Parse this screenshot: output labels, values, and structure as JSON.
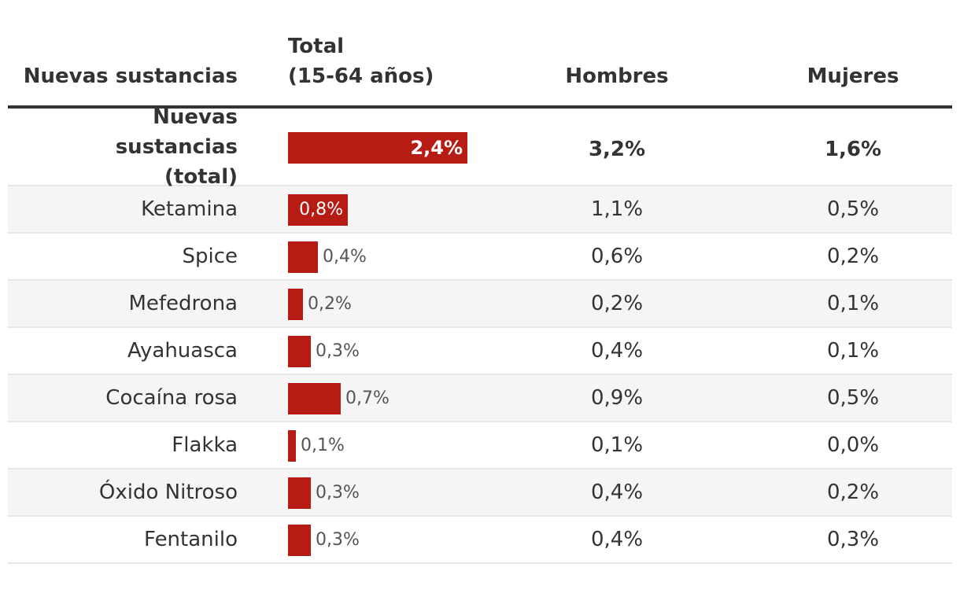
{
  "colors": {
    "bar": "#b71c14",
    "text": "#333333"
  },
  "header": {
    "name": "Nuevas sustancias",
    "total_line1": "Total",
    "total_line2": "(15-64 años)",
    "men": "Hombres",
    "women": "Mujeres"
  },
  "rows": [
    {
      "name": "Nuevas sustancias (total)",
      "total": 2.4,
      "total_label": "2,4%",
      "men": "3,2%",
      "women": "1,6%"
    },
    {
      "name": "Ketamina",
      "total": 0.8,
      "total_label": "0,8%",
      "men": "1,1%",
      "women": "0,5%"
    },
    {
      "name": "Spice",
      "total": 0.4,
      "total_label": "0,4%",
      "men": "0,6%",
      "women": "0,2%"
    },
    {
      "name": "Mefedrona",
      "total": 0.2,
      "total_label": "0,2%",
      "men": "0,2%",
      "women": "0,1%"
    },
    {
      "name": "Ayahuasca",
      "total": 0.3,
      "total_label": "0,3%",
      "men": "0,4%",
      "women": "0,1%"
    },
    {
      "name": "Cocaína rosa",
      "total": 0.7,
      "total_label": "0,7%",
      "men": "0,9%",
      "women": "0,5%"
    },
    {
      "name": "Flakka",
      "total": 0.1,
      "total_label": "0,1%",
      "men": "0,1%",
      "women": "0,0%"
    },
    {
      "name": "Óxido Nitroso",
      "total": 0.3,
      "total_label": "0,3%",
      "men": "0,4%",
      "women": "0,2%"
    },
    {
      "name": "Fentanilo",
      "total": 0.3,
      "total_label": "0,3%",
      "men": "0,4%",
      "women": "0,3%"
    }
  ],
  "chart_data": {
    "type": "table",
    "title": "",
    "columns": [
      "Nuevas sustancias",
      "Total (15-64 años)",
      "Hombres",
      "Mujeres"
    ],
    "categories": [
      "Nuevas sustancias (total)",
      "Ketamina",
      "Spice",
      "Mefedrona",
      "Ayahuasca",
      "Cocaína rosa",
      "Flakka",
      "Óxido Nitroso",
      "Fentanilo"
    ],
    "series": [
      {
        "name": "Total (15-64 años)",
        "values": [
          2.4,
          0.8,
          0.4,
          0.2,
          0.3,
          0.7,
          0.1,
          0.3,
          0.3
        ]
      },
      {
        "name": "Hombres",
        "values": [
          3.2,
          1.1,
          0.6,
          0.2,
          0.4,
          0.9,
          0.1,
          0.4,
          0.4
        ]
      },
      {
        "name": "Mujeres",
        "values": [
          1.6,
          0.5,
          0.2,
          0.1,
          0.1,
          0.5,
          0.0,
          0.2,
          0.3
        ]
      }
    ],
    "unit": "%",
    "bar_column": "Total (15-64 años)",
    "bar_max": 2.4
  }
}
